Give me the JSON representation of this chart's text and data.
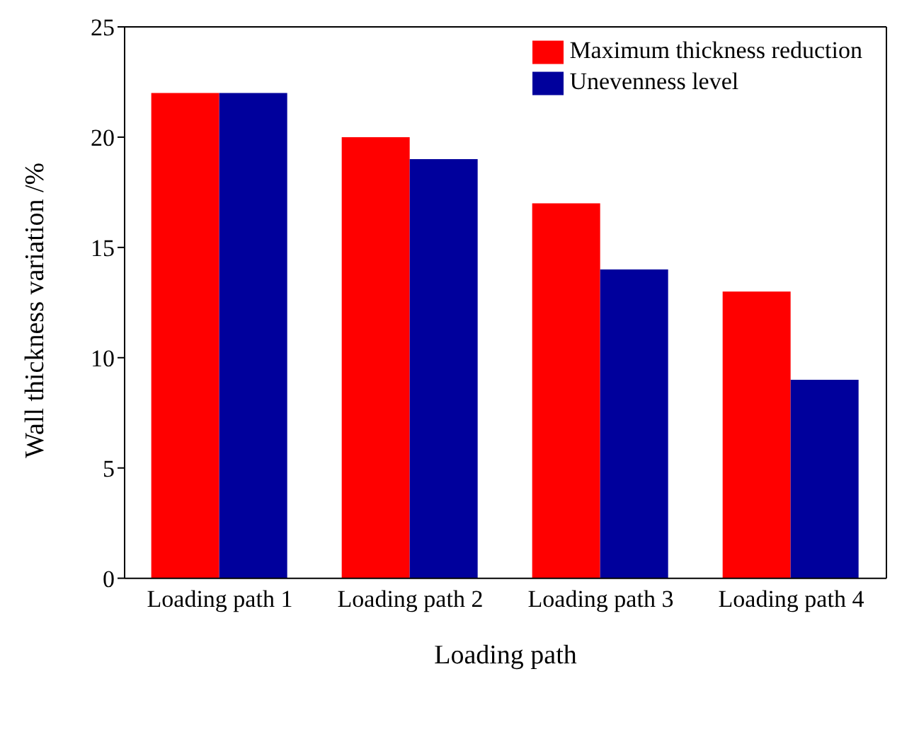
{
  "chart_data": {
    "type": "bar",
    "xlabel": "Loading path",
    "ylabel": "Wall thickness variation /%",
    "categories": [
      "Loading path 1",
      "Loading path 2",
      "Loading path 3",
      "Loading path 4"
    ],
    "series": [
      {
        "name": "Maximum thickness reduction",
        "color": "#ff0000",
        "values": [
          22,
          20,
          17,
          13
        ]
      },
      {
        "name": "Unevenness level",
        "color": "#00009c",
        "values": [
          22,
          19,
          14,
          9
        ]
      }
    ],
    "ylim": [
      0,
      25
    ],
    "yticks": [
      0,
      5,
      10,
      15,
      20,
      25
    ],
    "legend": "top right"
  }
}
